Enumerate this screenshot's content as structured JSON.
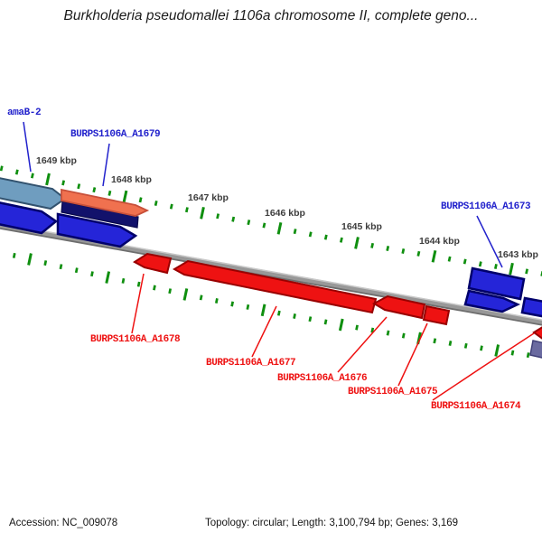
{
  "title": "Burkholderia pseudomallei 1106a chromosome II, complete geno...",
  "footer": {
    "accession": "Accession: NC_009078",
    "stats": "Topology: circular; Length: 3,100,794 bp; Genes: 3,169"
  },
  "ruler": {
    "unit": "kbp",
    "labels": [
      "1649 kbp",
      "1648 kbp",
      "1647 kbp",
      "1646 kbp",
      "1645 kbp",
      "1644 kbp",
      "1643 kbp"
    ]
  },
  "genes": {
    "amab2": {
      "label": "amaB-2",
      "label_color": "blue",
      "arrow_color": "steel_blue",
      "strand_side": "outer",
      "points": "right"
    },
    "a1679": {
      "label": "BURPS1106A_A1679",
      "label_color": "blue",
      "arrow_color": "salmon",
      "strand_side": "outer",
      "points": "right"
    },
    "a1673": {
      "label": "BURPS1106A_A1673",
      "label_color": "blue",
      "arrow_color": "blue",
      "strand_side": "outer"
    },
    "a1678": {
      "label": "BURPS1106A_A1678",
      "label_color": "red",
      "arrow_color": "red",
      "strand_side": "inner",
      "points": "left"
    },
    "a1677": {
      "label": "BURPS1106A_A1677",
      "label_color": "red",
      "arrow_color": "red",
      "strand_side": "inner",
      "points": "left"
    },
    "a1676": {
      "label": "BURPS1106A_A1676",
      "label_color": "red",
      "arrow_color": "red",
      "strand_side": "inner",
      "points": "left"
    },
    "a1675": {
      "label": "BURPS1106A_A1675",
      "label_color": "red",
      "arrow_color": "red",
      "strand_side": "inner"
    },
    "a1674": {
      "label": "BURPS1106A_A1674",
      "label_color": "red",
      "arrow_color": "red",
      "strand_side": "inner",
      "points": "left"
    }
  },
  "unlabeled_features": [
    {
      "arrow_color": "navy",
      "strand_side": "outer"
    },
    {
      "arrow_color": "blue",
      "strand_side": "outer",
      "points": "right"
    },
    {
      "arrow_color": "blue",
      "strand_side": "outer",
      "points": "right"
    },
    {
      "arrow_color": "blue",
      "strand_side": "outer",
      "points": "right"
    },
    {
      "arrow_color": "blue",
      "strand_side": "outer"
    },
    {
      "arrow_color": "slate_purple",
      "strand_side": "inner"
    }
  ],
  "colors": {
    "background": "#ffffff",
    "backbone_gray": "#989898",
    "backbone_highlight": "#c8c8c8",
    "backbone_shadow": "#6e6e6e",
    "tick_green": "#0f8f0f",
    "label_blue": "#2222cc",
    "label_red": "#ee1111",
    "kbp_label_gray": "#3d3d3d",
    "gene_blue": "#2525d8",
    "gene_blue_edge": "#00006b",
    "gene_red": "#ee1212",
    "gene_red_edge": "#990000",
    "gene_steel_blue": "#6f9dbf",
    "gene_steel_edge": "#32526e",
    "gene_salmon": "#f0714f",
    "gene_salmon_edge": "#c8503a",
    "gene_navy": "#12126b",
    "gene_navy_edge": "#0a0a4a",
    "gene_slate": "#6a6aa0",
    "gene_slate_edge": "#404078"
  }
}
